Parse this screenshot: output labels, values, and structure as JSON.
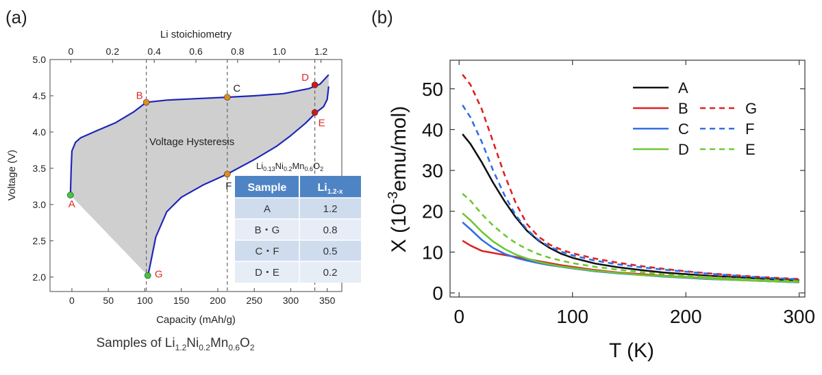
{
  "panels": {
    "a_label": "(a)",
    "b_label": "(b)"
  },
  "chart_data": [
    {
      "type": "line",
      "panel": "(a)",
      "xlabel": "Capacity (mAh/g)",
      "ylabel": "Voltage (V)",
      "x2label": "Li stoichiometry",
      "xlim": [
        -30,
        370
      ],
      "ylim": [
        1.8,
        5.0
      ],
      "x2lim": [
        -0.1,
        1.3
      ],
      "xticks": [
        0,
        50,
        100,
        150,
        200,
        250,
        300,
        350
      ],
      "yticks": [
        2.0,
        2.5,
        3.0,
        3.5,
        4.0,
        4.5,
        5.0
      ],
      "x2ticks": [
        0,
        0.2,
        0.4,
        0.6,
        0.8,
        1.0,
        1.2
      ],
      "xtick_labels": [
        "0",
        "50",
        "100",
        "150",
        "200",
        "250",
        "300",
        "350"
      ],
      "ytick_labels": [
        "2.0",
        "2.5",
        "3.0",
        "3.5",
        "4.0",
        "4.5",
        "5.0"
      ],
      "x2tick_labels": [
        "0",
        "0.2",
        "0.4",
        "0.6",
        "0.8",
        "1.0",
        "1.2"
      ],
      "curve_color": "#1f24b8",
      "hysteresis_color": "#cfcfcf",
      "series": [
        {
          "role": "charge",
          "x": [
            -2,
            -1,
            0,
            5,
            12,
            30,
            60,
            85,
            102,
            130,
            170,
            212,
            250,
            290,
            325,
            340,
            352
          ],
          "y": [
            3.13,
            3.5,
            3.74,
            3.86,
            3.92,
            4.0,
            4.13,
            4.28,
            4.41,
            4.44,
            4.46,
            4.48,
            4.5,
            4.53,
            4.6,
            4.66,
            4.79
          ]
        },
        {
          "role": "discharge",
          "x": [
            352,
            350,
            345,
            335,
            320,
            300,
            280,
            250,
            213,
            180,
            150,
            130,
            115,
            110,
            106,
            104
          ],
          "y": [
            4.63,
            4.45,
            4.35,
            4.27,
            4.12,
            3.95,
            3.8,
            3.62,
            3.42,
            3.27,
            3.1,
            2.9,
            2.55,
            2.3,
            2.1,
            2.02
          ]
        }
      ],
      "points": [
        {
          "label": "A",
          "x": -2,
          "y": 3.13,
          "color": "#3ec83e",
          "label_color": "#e02828"
        },
        {
          "label": "B",
          "x": 102,
          "y": 4.41,
          "color": "#e08a22",
          "label_color": "#e02828"
        },
        {
          "label": "C",
          "x": 213,
          "y": 4.48,
          "color": "#e08a22",
          "label_color": "#222222"
        },
        {
          "label": "D",
          "x": 333,
          "y": 4.65,
          "color": "#d01818",
          "label_color": "#e02828"
        },
        {
          "label": "E",
          "x": 333,
          "y": 4.27,
          "color": "#d01818",
          "label_color": "#e02828"
        },
        {
          "label": "F",
          "x": 213,
          "y": 3.42,
          "color": "#e08a22",
          "label_color": "#222222"
        },
        {
          "label": "G",
          "x": 104,
          "y": 2.02,
          "color": "#3ec83e",
          "label_color": "#e02828"
        }
      ],
      "vlines": [
        102,
        213,
        333
      ],
      "annotations": {
        "hysteresis": "Voltage Hysteresis",
        "composition_parts": [
          "Li",
          "0.13",
          "Ni",
          "0.2",
          "Mn",
          "0.6",
          "O",
          "2"
        ]
      },
      "table": {
        "headers": [
          "Sample",
          "Li",
          "1.2-x"
        ],
        "rows": [
          [
            "A",
            "1.2"
          ],
          [
            "B・G",
            "0.8"
          ],
          [
            "C・F",
            "0.5"
          ],
          [
            "D・E",
            "0.2"
          ]
        ]
      },
      "caption_parts": [
        "Samples of Li",
        "1.2",
        "Ni",
        "0.2",
        "Mn",
        "0.6",
        "O",
        "2"
      ]
    },
    {
      "type": "line",
      "panel": "(b)",
      "xlabel": "T (K)",
      "ylabel_parts": [
        "X (10",
        "-3",
        "emu/mol)"
      ],
      "xlim": [
        -8,
        305
      ],
      "ylim": [
        -1,
        57
      ],
      "xticks": [
        0,
        100,
        200,
        300
      ],
      "yticks": [
        0,
        10,
        20,
        30,
        40,
        50
      ],
      "xtick_labels": [
        "0",
        "100",
        "200",
        "300"
      ],
      "ytick_labels": [
        "0",
        "10",
        "20",
        "30",
        "40",
        "50"
      ],
      "x": [
        3,
        10,
        20,
        30,
        40,
        50,
        60,
        70,
        80,
        90,
        100,
        120,
        140,
        160,
        180,
        200,
        220,
        240,
        260,
        280,
        300
      ],
      "series": [
        {
          "name": "A",
          "color": "#111111",
          "dash": "solid",
          "values": [
            38.9,
            36.5,
            32.0,
            27.0,
            22.5,
            18.5,
            15.2,
            12.8,
            11.0,
            9.6,
            8.6,
            7.2,
            6.3,
            5.6,
            5.0,
            4.6,
            4.2,
            3.9,
            3.6,
            3.3,
            3.1
          ]
        },
        {
          "name": "B",
          "color": "#e02020",
          "dash": "solid",
          "values": [
            12.8,
            11.6,
            10.3,
            9.8,
            9.3,
            8.8,
            8.3,
            7.8,
            7.3,
            6.8,
            6.4,
            5.6,
            5.0,
            4.6,
            4.2,
            3.9,
            3.6,
            3.3,
            3.0,
            2.8,
            2.6
          ]
        },
        {
          "name": "C",
          "color": "#2f6fe6",
          "dash": "solid",
          "values": [
            17.3,
            15.6,
            13.0,
            11.0,
            9.6,
            8.6,
            7.9,
            7.3,
            6.8,
            6.4,
            6.0,
            5.3,
            4.8,
            4.4,
            4.0,
            3.7,
            3.4,
            3.2,
            3.0,
            2.8,
            2.6
          ]
        },
        {
          "name": "D",
          "color": "#6cc832",
          "dash": "solid",
          "values": [
            19.5,
            17.8,
            15.0,
            12.6,
            10.8,
            9.4,
            8.4,
            7.6,
            7.0,
            6.5,
            6.1,
            5.4,
            4.9,
            4.4,
            4.1,
            3.8,
            3.5,
            3.2,
            3.0,
            2.8,
            2.7
          ]
        },
        {
          "name": "G",
          "color": "#e02020",
          "dash": "dashed",
          "values": [
            53.5,
            51.0,
            45.0,
            37.0,
            29.0,
            22.0,
            16.8,
            13.8,
            11.8,
            10.6,
            9.7,
            8.4,
            7.4,
            6.6,
            5.9,
            5.3,
            4.8,
            4.4,
            4.0,
            3.7,
            3.4
          ]
        },
        {
          "name": "F",
          "color": "#2f6fe6",
          "dash": "dashed",
          "values": [
            46.0,
            43.0,
            37.0,
            30.0,
            24.0,
            19.0,
            15.5,
            13.0,
            11.3,
            10.1,
            9.2,
            7.9,
            7.0,
            6.3,
            5.7,
            5.2,
            4.7,
            4.3,
            3.9,
            3.6,
            3.3
          ]
        },
        {
          "name": "E",
          "color": "#6cc832",
          "dash": "dashed",
          "values": [
            24.3,
            22.6,
            19.3,
            16.5,
            14.2,
            12.2,
            10.7,
            9.5,
            8.6,
            7.9,
            7.3,
            6.4,
            5.7,
            5.1,
            4.6,
            4.2,
            3.9,
            3.6,
            3.3,
            3.1,
            2.9
          ]
        }
      ],
      "legend": {
        "placement": "top-right",
        "rows": [
          [
            "A"
          ],
          [
            "B",
            "G"
          ],
          [
            "C",
            "F"
          ],
          [
            "D",
            "E"
          ]
        ]
      }
    }
  ]
}
